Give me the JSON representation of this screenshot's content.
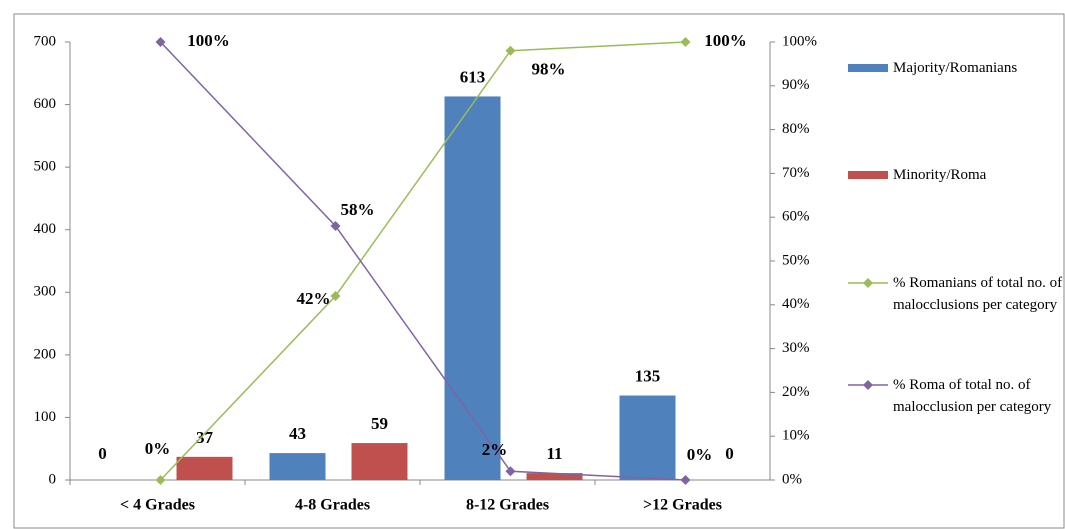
{
  "chart_data": {
    "type": "bar-line",
    "categories": [
      "< 4 Grades",
      "4-8 Grades",
      "8-12 Grades",
      ">12 Grades"
    ],
    "series": [
      {
        "name": "Majority/Romanians",
        "type": "bar",
        "color": "#4f81bd",
        "values": [
          0,
          43,
          613,
          135
        ],
        "value_labels": [
          "0",
          "43",
          "613",
          "135"
        ]
      },
      {
        "name": "Minority/Roma",
        "type": "bar",
        "color": "#c0504d",
        "values": [
          37,
          59,
          11,
          0
        ],
        "value_labels": [
          "37",
          "59",
          "11",
          "0"
        ]
      },
      {
        "name": "% Romanians of total no. of malocclusions per category",
        "type": "line",
        "axis": "y2",
        "color": "#9bbb59",
        "values": [
          0,
          42,
          98,
          100
        ],
        "value_labels": [
          "0%",
          "42%",
          "98%",
          "100%"
        ]
      },
      {
        "name": "% Roma of total no. of malocclusion per category",
        "type": "line",
        "axis": "y2",
        "color": "#8064a2",
        "values": [
          100,
          58,
          2,
          0
        ],
        "value_labels": [
          "100%",
          "58%",
          "2%",
          "0%"
        ]
      }
    ],
    "ylim": [
      0,
      700
    ],
    "yticks": [
      0,
      100,
      200,
      300,
      400,
      500,
      600,
      700
    ],
    "y2lim": [
      0,
      100
    ],
    "y2ticks": [
      {
        "value": 0,
        "label": "0%"
      },
      {
        "value": 10,
        "label": "10%"
      },
      {
        "value": 20,
        "label": "20%"
      },
      {
        "value": 30,
        "label": "30%"
      },
      {
        "value": 40,
        "label": "40%"
      },
      {
        "value": 50,
        "label": "50%"
      },
      {
        "value": 60,
        "label": "60%"
      },
      {
        "value": 70,
        "label": "70%"
      },
      {
        "value": 80,
        "label": "80%"
      },
      {
        "value": 90,
        "label": "90%"
      },
      {
        "value": 100,
        "label": "100%"
      }
    ],
    "legend": "right"
  }
}
